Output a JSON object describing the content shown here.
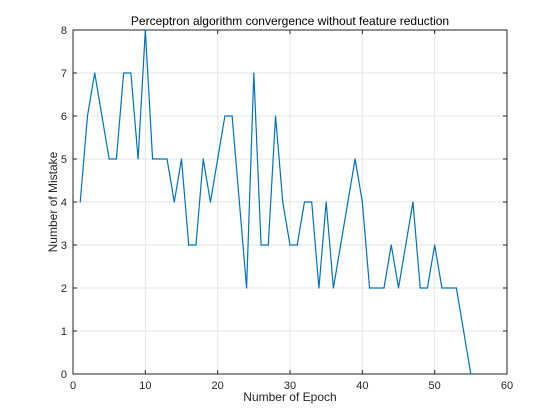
{
  "chart_data": {
    "type": "line",
    "title": "Perceptron algorithm convergence without feature reduction",
    "xlabel": "Number of Epoch",
    "ylabel": "Number of Mistake",
    "xlim": [
      0,
      60
    ],
    "ylim": [
      0,
      8
    ],
    "xticks": [
      0,
      10,
      20,
      30,
      40,
      50,
      60
    ],
    "yticks": [
      0,
      1,
      2,
      3,
      4,
      5,
      6,
      7,
      8
    ],
    "grid": true,
    "line_color": "#0072BD",
    "grid_color": "#e6e6e6",
    "axis_color": "#262626",
    "series": [
      {
        "x": [
          1,
          2,
          3,
          4,
          5,
          6,
          7,
          8,
          9,
          10,
          11,
          12,
          13,
          14,
          15,
          16,
          17,
          18,
          19,
          20,
          21,
          22,
          23,
          24,
          25,
          26,
          27,
          28,
          29,
          30,
          31,
          32,
          33,
          34,
          35,
          36,
          37,
          38,
          39,
          40,
          41,
          42,
          43,
          44,
          45,
          46,
          47,
          48,
          49,
          50,
          51,
          52,
          53,
          54,
          55
        ],
        "values": [
          4,
          6,
          7,
          6,
          5,
          5,
          7,
          7,
          5,
          8,
          5,
          5,
          5,
          4,
          5,
          3,
          3,
          5,
          4,
          5,
          6,
          6,
          4,
          2,
          7,
          3,
          3,
          6,
          4,
          3,
          3,
          4,
          4,
          2,
          4,
          2,
          3,
          4,
          5,
          4,
          2,
          2,
          2,
          3,
          2,
          3,
          4,
          2,
          2,
          3,
          2,
          2,
          2,
          1,
          0
        ]
      }
    ]
  }
}
